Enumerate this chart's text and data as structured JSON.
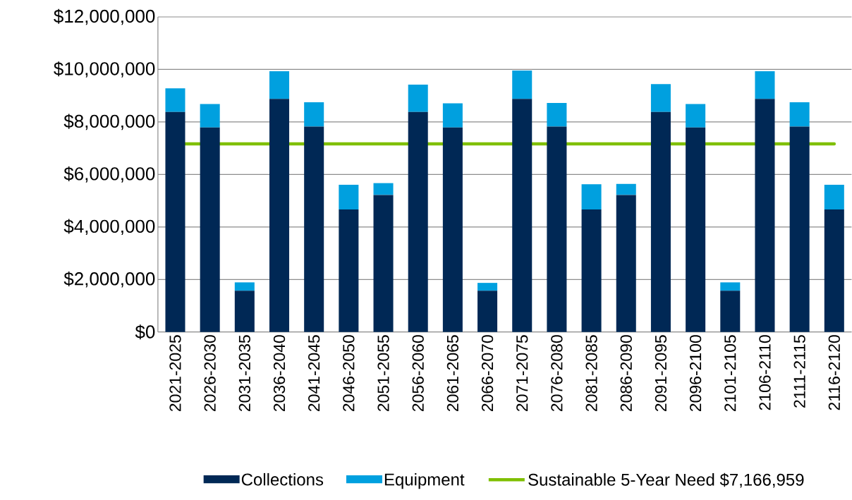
{
  "chart_data": {
    "type": "bar",
    "stacked": true,
    "categories": [
      "2021-2025",
      "2026-2030",
      "2031-2035",
      "2036-2040",
      "2041-2045",
      "2046-2050",
      "2051-2055",
      "2056-2060",
      "2061-2065",
      "2066-2070",
      "2071-2075",
      "2076-2080",
      "2081-2085",
      "2086-2090",
      "2091-2095",
      "2096-2100",
      "2101-2105",
      "2106-2110",
      "2111-2115",
      "2116-2120"
    ],
    "series": [
      {
        "name": "Collections",
        "color": "#002855",
        "values": [
          8380000,
          7790000,
          1570000,
          8880000,
          7820000,
          4670000,
          5220000,
          8380000,
          7790000,
          1570000,
          8880000,
          7820000,
          4670000,
          5220000,
          8380000,
          7790000,
          1570000,
          8880000,
          7820000,
          4670000
        ]
      },
      {
        "name": "Equipment",
        "color": "#00a0df",
        "values": [
          900000,
          890000,
          320000,
          1050000,
          930000,
          940000,
          450000,
          1040000,
          920000,
          300000,
          1080000,
          900000,
          960000,
          420000,
          1060000,
          890000,
          320000,
          1050000,
          930000,
          940000
        ]
      }
    ],
    "ref_lines": [
      {
        "axis": "y",
        "value": 7166959,
        "label": "Sustainable 5-Year Need $7,166,959",
        "color": "#7fbf00"
      }
    ],
    "ylim": [
      0,
      12000000
    ],
    "yticks": [
      {
        "value": 0,
        "label": "$0"
      },
      {
        "value": 2000000,
        "label": "$2,000,000"
      },
      {
        "value": 4000000,
        "label": "$4,000,000"
      },
      {
        "value": 6000000,
        "label": "$6,000,000"
      },
      {
        "value": 8000000,
        "label": "$8,000,000"
      },
      {
        "value": 10000000,
        "label": "$10,000,000"
      },
      {
        "value": 12000000,
        "label": "$12,000,000"
      }
    ],
    "grid": "y",
    "legend": "bottom"
  }
}
